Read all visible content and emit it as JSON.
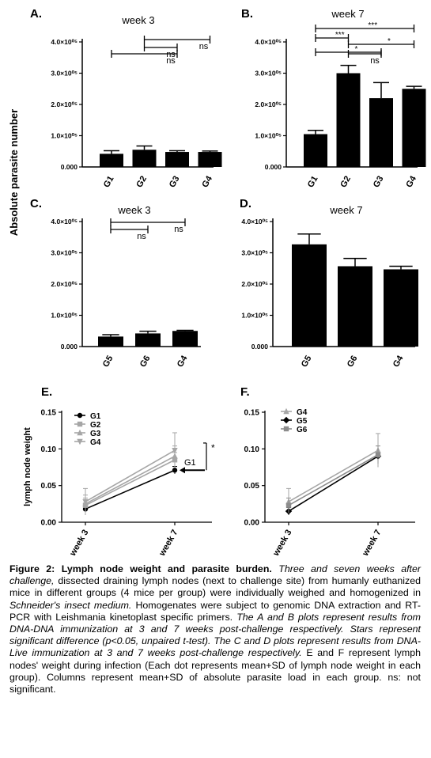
{
  "y_axis_title": "Absolute parasite number",
  "chart_data": [
    {
      "panel": "A.",
      "title": "week 3",
      "type": "bar",
      "categories": [
        "G1",
        "G2",
        "G3",
        "G4"
      ],
      "values": [
        0.42,
        0.55,
        0.48,
        0.48
      ],
      "errors": [
        0.1,
        0.12,
        0.04,
        0.03
      ],
      "ylim": [
        0,
        4.0
      ],
      "yticks": [
        "0.000",
        "1.0×10⁰⁵",
        "2.0×10⁰⁵",
        "3.0×10⁰⁵",
        "4.0×10⁰⁵"
      ],
      "brackets": [
        {
          "from": "G1",
          "to": "G3",
          "label": "ns"
        },
        {
          "from": "G2",
          "to": "G4",
          "label": "ns"
        },
        {
          "from": "G2",
          "to": "G3",
          "label": "ns"
        }
      ]
    },
    {
      "panel": "B.",
      "title": "week 7",
      "type": "bar",
      "categories": [
        "G1",
        "G2",
        "G3",
        "G4"
      ],
      "values": [
        1.05,
        3.0,
        2.2,
        2.5
      ],
      "errors": [
        0.12,
        0.25,
        0.5,
        0.08
      ],
      "ylim": [
        0,
        4.0
      ],
      "yticks": [
        "0.000",
        "1.0×10⁰⁵",
        "2.0×10⁰⁵",
        "3.0×10⁰⁵",
        "4.0×10⁰⁵"
      ],
      "brackets": [
        {
          "from": "G1",
          "to": "G4",
          "label": "***"
        },
        {
          "from": "G1",
          "to": "G3",
          "label": "*"
        },
        {
          "from": "G1",
          "to": "G2",
          "label": "***"
        },
        {
          "from": "G2",
          "to": "G4",
          "label": "*"
        },
        {
          "from": "G2",
          "to": "G3",
          "label": "ns"
        }
      ]
    },
    {
      "panel": "C.",
      "title": "week 3",
      "type": "bar",
      "categories": [
        "G5",
        "G6",
        "G4"
      ],
      "values": [
        0.32,
        0.42,
        0.5
      ],
      "errors": [
        0.06,
        0.07,
        0.02
      ],
      "ylim": [
        0,
        4.0
      ],
      "yticks": [
        "0.000",
        "1.0×10⁰⁵",
        "2.0×10⁰⁵",
        "3.0×10⁰⁵",
        "4.0×10⁰⁵"
      ],
      "brackets": [
        {
          "from": "G5",
          "to": "G4",
          "label": "ns"
        },
        {
          "from": "G5",
          "to": "G6",
          "label": "ns"
        }
      ]
    },
    {
      "panel": "D.",
      "title": "week 7",
      "type": "bar",
      "categories": [
        "G5",
        "G6",
        "G4"
      ],
      "values": [
        3.27,
        2.57,
        2.47
      ],
      "errors": [
        0.33,
        0.25,
        0.1
      ],
      "ylim": [
        0,
        4.0
      ],
      "yticks": [
        "0.000",
        "1.0×10⁰⁵",
        "2.0×10⁰⁵",
        "3.0×10⁰⁵",
        "4.0×10⁰⁵"
      ],
      "brackets": []
    },
    {
      "panel": "E.",
      "type": "line",
      "ylabel": "lymph node weight",
      "x": [
        "week 3",
        "week 7"
      ],
      "ylim": [
        0,
        0.15
      ],
      "yticks": [
        "0.00",
        "0.05",
        "0.10",
        "0.15"
      ],
      "series": [
        {
          "name": "G1",
          "values": [
            0.018,
            0.071
          ],
          "errors": [
            0.008,
            0.005
          ],
          "color": "#000000",
          "marker": "circle"
        },
        {
          "name": "G2",
          "values": [
            0.023,
            0.085
          ],
          "errors": [
            0.01,
            0.01
          ],
          "color": "#a6a6a6",
          "marker": "square"
        },
        {
          "name": "G3",
          "values": [
            0.025,
            0.09
          ],
          "errors": [
            0.012,
            0.014
          ],
          "color": "#a6a6a6",
          "marker": "triangle"
        },
        {
          "name": "G4",
          "values": [
            0.028,
            0.098
          ],
          "errors": [
            0.018,
            0.024
          ],
          "color": "#a6a6a6",
          "marker": "triangle-down"
        }
      ],
      "annotations": [
        {
          "text": "G1"
        },
        {
          "text": "*"
        }
      ]
    },
    {
      "panel": "F.",
      "type": "line",
      "x": [
        "week 3",
        "week 7"
      ],
      "ylim": [
        0,
        0.15
      ],
      "yticks": [
        "0.00",
        "0.05",
        "0.10",
        "0.15"
      ],
      "series": [
        {
          "name": "G4",
          "values": [
            0.028,
            0.098
          ],
          "errors": [
            0.018,
            0.023
          ],
          "color": "#a6a6a6",
          "marker": "triangle"
        },
        {
          "name": "G5",
          "values": [
            0.015,
            0.09
          ],
          "errors": [
            0.005,
            0.004
          ],
          "color": "#000000",
          "marker": "diamond"
        },
        {
          "name": "G6",
          "values": [
            0.023,
            0.092
          ],
          "errors": [
            0.01,
            0.012
          ],
          "color": "#8c8c8c",
          "marker": "square"
        }
      ]
    }
  ],
  "caption": {
    "title": "Figure 2: Lymph node weight and parasite burden.",
    "p1": "Three and seven weeks after challenge,",
    "p2": "dissected draining lymph nodes (next to challenge site) from humanly euthanized mice in different groups (4 mice per group) were individually weighed and homogenized in",
    "p3": "Schneider's insect medium.",
    "p4": "Homogenates were subject to genomic DNA extraction and RT-PCR with Leishmania kinetoplast specific primers.",
    "p5": "The A and B plots represent results from DNA-DNA immunization at 3 and 7 weeks post-challenge respectively. Stars represent significant difference (p<0.05, unpaired t-test). The C and D plots represent results from DNA-Live immunization at 3 and 7 weeks post-challenge respectively.",
    "p6": "E and F represent lymph nodes' weight during infection (Each dot represents mean+SD of lymph node weight in each group). Columns represent mean+SD of absolute parasite load in each group. ns: not significant."
  }
}
